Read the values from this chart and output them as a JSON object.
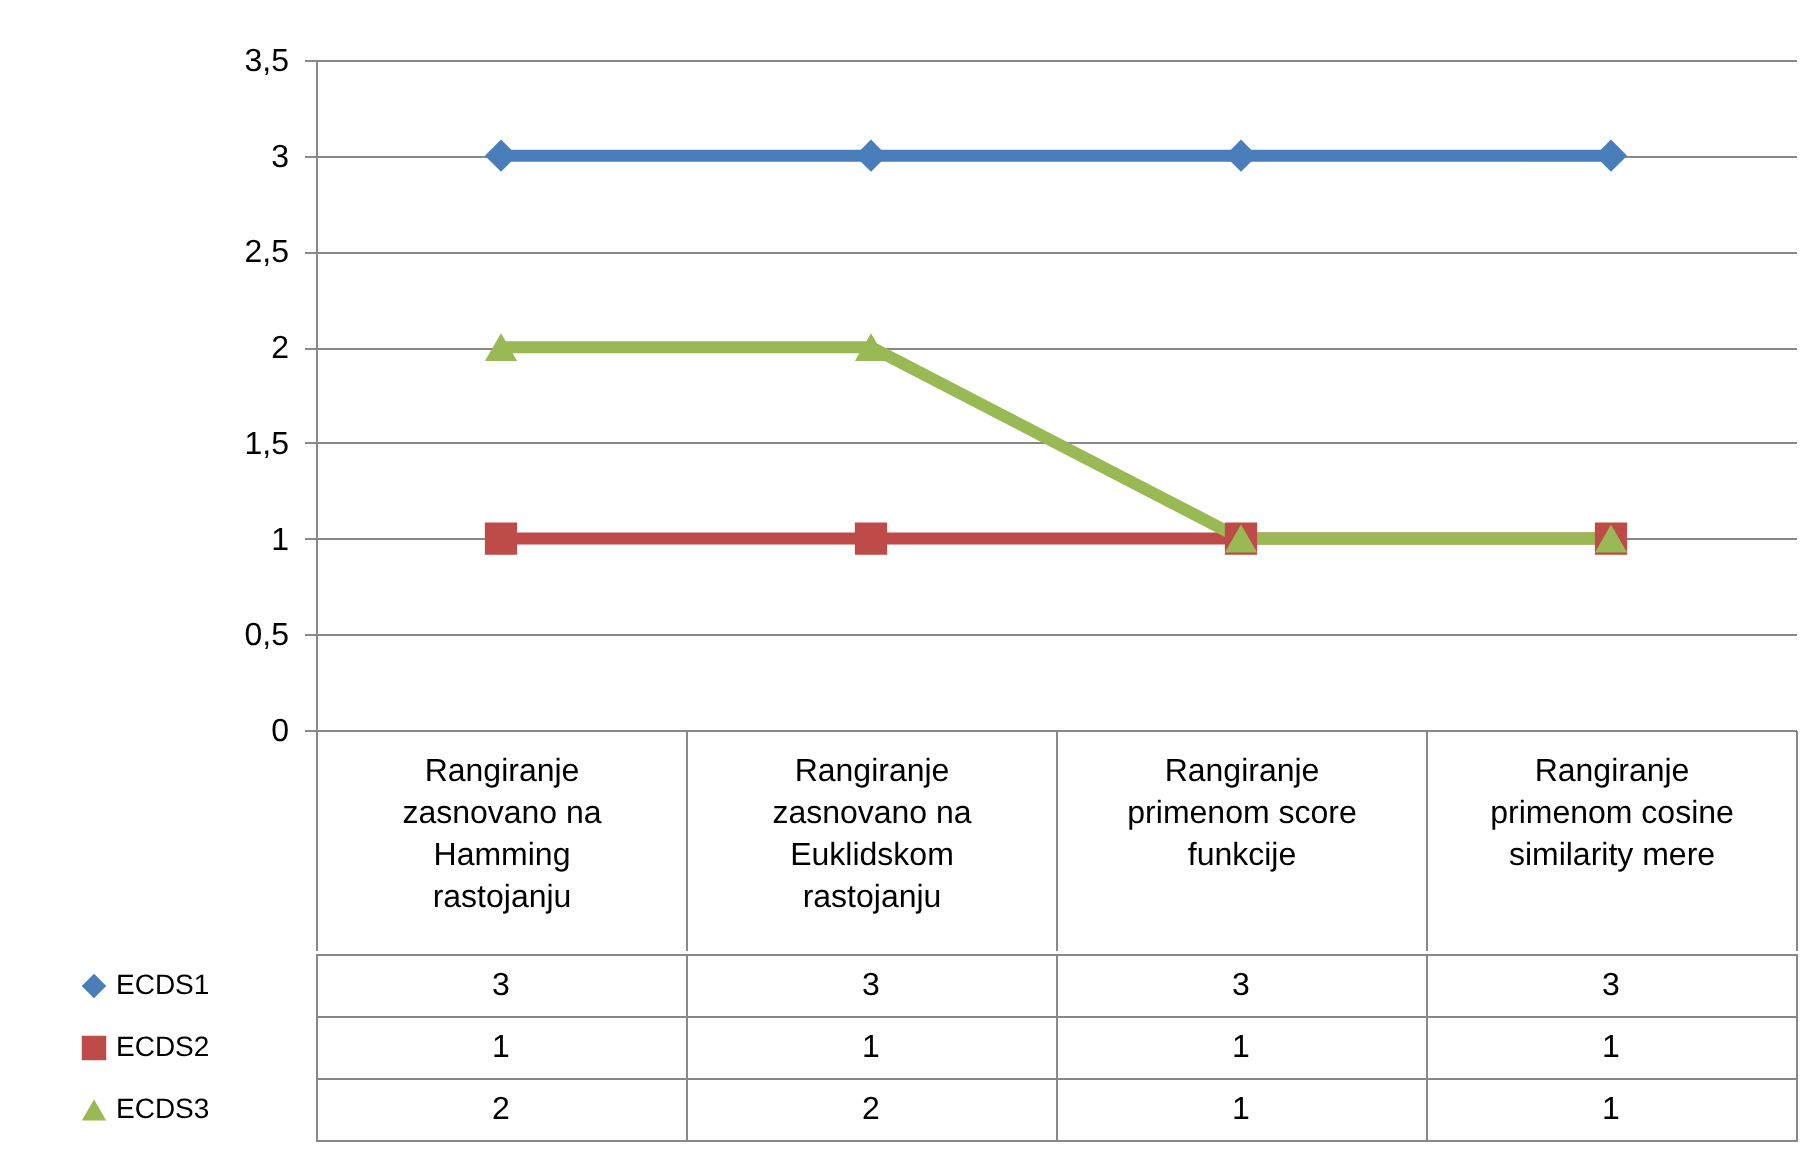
{
  "chart_data": {
    "type": "line",
    "categories": [
      "Rangiranje zasnovano na Hamming rastojanju",
      "Rangiranje zasnovano na Euklidskom rastojanju",
      "Rangiranje primenom score funkcije",
      "Rangiranje primenom cosine similarity mere"
    ],
    "series": [
      {
        "name": "ECDS1",
        "color": "#4a7ebb",
        "marker": "diamond",
        "values": [
          3,
          3,
          3,
          3
        ]
      },
      {
        "name": "ECDS2",
        "color": "#be4b48",
        "marker": "square",
        "values": [
          1,
          1,
          1,
          1
        ]
      },
      {
        "name": "ECDS3",
        "color": "#98b954",
        "marker": "triangle",
        "values": [
          2,
          2,
          1,
          1
        ]
      }
    ],
    "ylim": [
      0,
      3.5
    ],
    "yticks": [
      0,
      {
        "value": 0.5,
        "label": "0,5"
      },
      1,
      {
        "value": 1.5,
        "label": "1,5"
      },
      2,
      {
        "value": 2.5,
        "label": "2,5"
      },
      3,
      {
        "value": 3.5,
        "label": "3,5"
      }
    ],
    "grid": "y",
    "legend": "bottom left",
    "data_labels": true,
    "line_style": "solid"
  }
}
